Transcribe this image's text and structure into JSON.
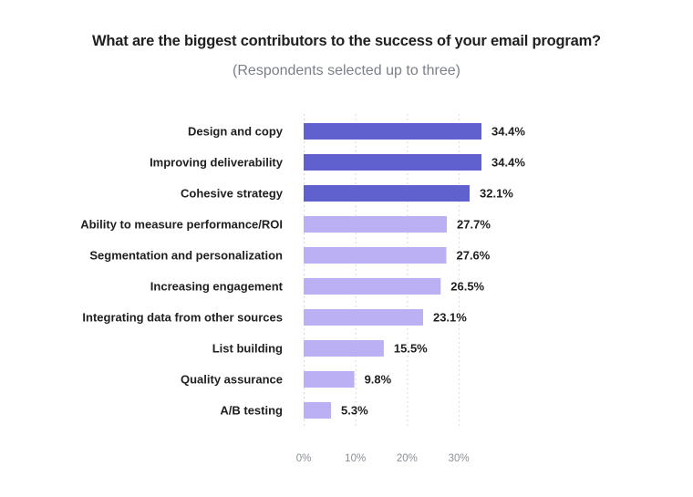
{
  "chart_data": {
    "type": "bar",
    "orientation": "horizontal",
    "title": "What are the biggest contributors to the success of your email program?",
    "subtitle": "(Respondents selected up to three)",
    "xlabel": "",
    "ylabel": "",
    "categories": [
      "Design and copy",
      "Improving deliverability",
      "Cohesive strategy",
      "Ability to measure performance/ROI",
      "Segmentation and personalization",
      "Increasing engagement",
      "Integrating data from other sources",
      "List building",
      "Quality assurance",
      "A/B testing"
    ],
    "values": [
      34.4,
      34.4,
      32.1,
      27.7,
      27.6,
      26.5,
      23.1,
      15.5,
      9.8,
      5.3
    ],
    "value_labels": [
      "34.4%",
      "34.4%",
      "32.1%",
      "27.7%",
      "27.6%",
      "26.5%",
      "23.1%",
      "15.5%",
      "9.8%",
      "5.3%"
    ],
    "highlighted": [
      true,
      true,
      true,
      false,
      false,
      false,
      false,
      false,
      false,
      false
    ],
    "colors": {
      "highlight": "#6060cf",
      "default": "#bab0f3"
    },
    "xlim": [
      0,
      35
    ],
    "xticks": [
      0,
      10,
      20,
      30
    ],
    "xtick_labels": [
      "0%",
      "10%",
      "20%",
      "30%"
    ],
    "grid": true,
    "grid_style": "dotted vertical",
    "legend": "none"
  }
}
